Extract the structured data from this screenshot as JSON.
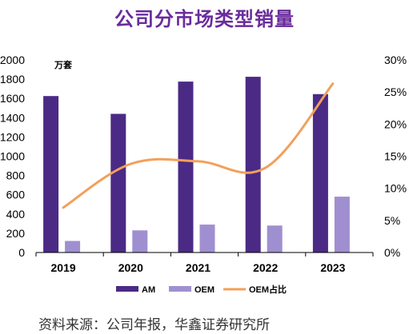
{
  "title": "公司分市场类型销量",
  "source": "资料来源：公司年报，华鑫证券研究所",
  "chart_data": {
    "type": "bar",
    "categories": [
      "2019",
      "2020",
      "2021",
      "2022",
      "2023"
    ],
    "series": [
      {
        "name": "AM",
        "type": "bar",
        "axis": "left",
        "color": "#4b2a85",
        "values": [
          1625,
          1440,
          1775,
          1825,
          1645
        ]
      },
      {
        "name": "OEM",
        "type": "bar",
        "axis": "left",
        "color": "#a08fd0",
        "values": [
          120,
          230,
          290,
          280,
          580
        ]
      },
      {
        "name": "OEM占比",
        "type": "line",
        "axis": "right",
        "color": "#f2a05a",
        "values": [
          7.0,
          13.8,
          14.2,
          13.2,
          26.3
        ]
      }
    ],
    "ylabel": "万套",
    "ylim": [
      0,
      2000
    ],
    "yticks": [
      0,
      200,
      400,
      600,
      800,
      1000,
      1200,
      1400,
      1600,
      1800,
      2000
    ],
    "y2lim": [
      0,
      30
    ],
    "y2ticks": [
      "0%",
      "5%",
      "10%",
      "15%",
      "20%",
      "25%",
      "30%"
    ],
    "grid": false,
    "legend_position": "bottom"
  }
}
